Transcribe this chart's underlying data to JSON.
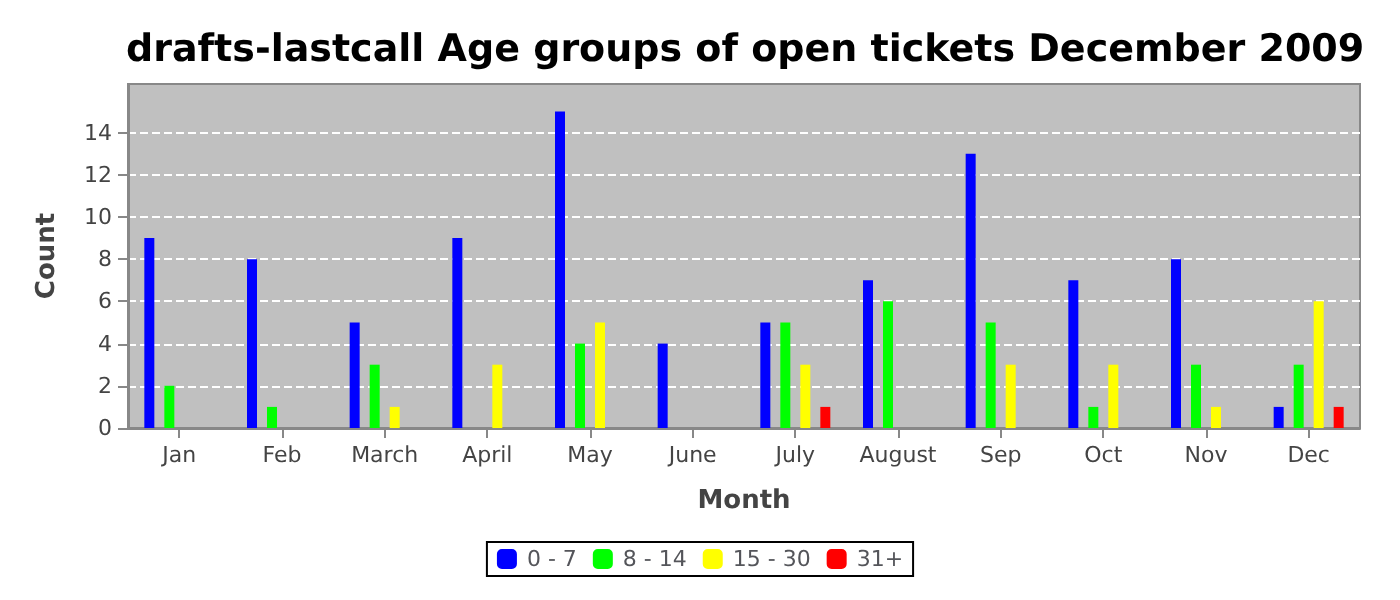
{
  "chart_data": {
    "type": "bar",
    "title": "drafts-lastcall Age groups of open tickets December 2009",
    "xlabel": "Month",
    "ylabel": "Count",
    "categories": [
      "Jan",
      "Feb",
      "March",
      "April",
      "May",
      "June",
      "July",
      "August",
      "Sep",
      "Oct",
      "Nov",
      "Dec"
    ],
    "series": [
      {
        "name": "0 - 7",
        "color": "#0000ff",
        "values": [
          9,
          8,
          5,
          9,
          15,
          4,
          5,
          7,
          13,
          7,
          8,
          1
        ]
      },
      {
        "name": "8 - 14",
        "color": "#00ff00",
        "values": [
          2,
          1,
          3,
          0,
          4,
          0,
          5,
          6,
          5,
          1,
          3,
          3
        ]
      },
      {
        "name": "15 - 30",
        "color": "#ffff00",
        "values": [
          0,
          0,
          1,
          3,
          5,
          0,
          3,
          0,
          3,
          3,
          1,
          6
        ]
      },
      {
        "name": "31+",
        "color": "#ff0000",
        "values": [
          0,
          0,
          0,
          0,
          0,
          0,
          1,
          0,
          0,
          0,
          0,
          1
        ]
      }
    ],
    "ylim": [
      0,
      16.3
    ],
    "yticks": [
      0,
      2,
      4,
      6,
      8,
      10,
      12,
      14
    ],
    "grid": "y",
    "legend": "bottom"
  }
}
